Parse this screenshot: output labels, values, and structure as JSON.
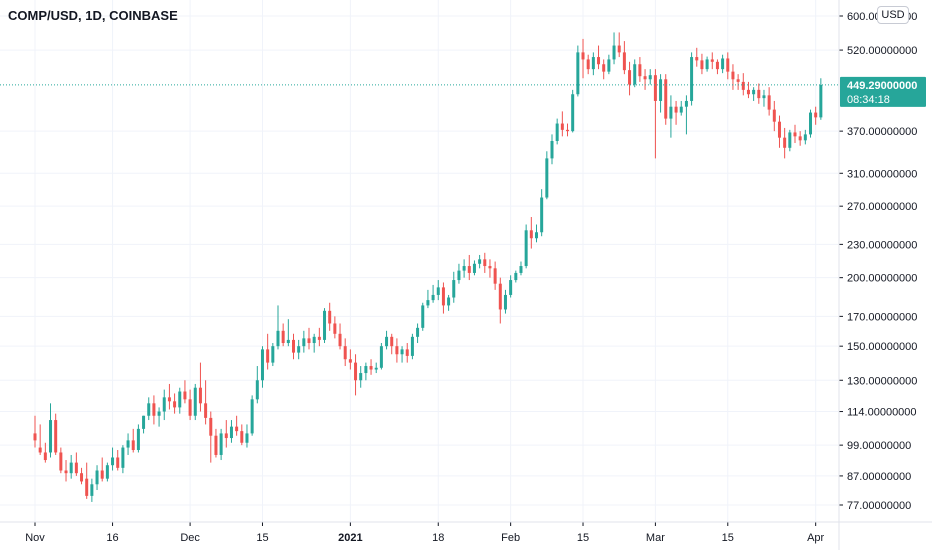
{
  "header": {
    "title": "COMP/USD, 1D, COINBASE",
    "currency_label": "USD"
  },
  "price_tag": {
    "price": "449.29000000",
    "countdown": "08:34:18",
    "color": "#26a69a"
  },
  "colors": {
    "up": "#26a69a",
    "down": "#ef5350",
    "grid": "#f0f3fa",
    "text": "#131722"
  },
  "chart_data": {
    "type": "candlestick",
    "y_scale": "log",
    "ylim": [
      72,
      620
    ],
    "x_tick_labels": [
      {
        "label": "Nov",
        "day": 0
      },
      {
        "label": "16",
        "day": 15
      },
      {
        "label": "Dec",
        "day": 30
      },
      {
        "label": "15",
        "day": 44
      },
      {
        "label": "2021",
        "day": 61,
        "bold": true
      },
      {
        "label": "18",
        "day": 78
      },
      {
        "label": "Feb",
        "day": 92
      },
      {
        "label": "15",
        "day": 106
      },
      {
        "label": "Mar",
        "day": 120
      },
      {
        "label": "15",
        "day": 134
      },
      {
        "label": "Apr",
        "day": 151
      }
    ],
    "y_tick_labels": [
      {
        "label": "600.00000000",
        "value": 600
      },
      {
        "label": "520.00000000",
        "value": 520
      },
      {
        "label": "370.00000000",
        "value": 370
      },
      {
        "label": "310.00000000",
        "value": 310
      },
      {
        "label": "270.00000000",
        "value": 270
      },
      {
        "label": "230.00000000",
        "value": 230
      },
      {
        "label": "200.00000000",
        "value": 200
      },
      {
        "label": "170.00000000",
        "value": 170
      },
      {
        "label": "150.00000000",
        "value": 150
      },
      {
        "label": "130.00000000",
        "value": 130
      },
      {
        "label": "114.00000000",
        "value": 114
      },
      {
        "label": "99.00000000",
        "value": 99
      },
      {
        "label": "87.00000000",
        "value": 87
      },
      {
        "label": "77.00000000",
        "value": 77
      }
    ],
    "last_price": 449.29,
    "grid": true,
    "candles_ohlc": [
      [
        104,
        112,
        101,
        98
      ],
      [
        98,
        108,
        96,
        95
      ],
      [
        96,
        100,
        93,
        92
      ],
      [
        96,
        118,
        110,
        94
      ],
      [
        110,
        113,
        96,
        95
      ],
      [
        96,
        98,
        89,
        88
      ],
      [
        89,
        93,
        88,
        85
      ],
      [
        88,
        95,
        92,
        86
      ],
      [
        92,
        96,
        88,
        87
      ],
      [
        88,
        90,
        85,
        84
      ],
      [
        86,
        92,
        80,
        79
      ],
      [
        80,
        86,
        84,
        78
      ],
      [
        84,
        91,
        89,
        82
      ],
      [
        89,
        94,
        86,
        85
      ],
      [
        86,
        92,
        91,
        85
      ],
      [
        91,
        98,
        94,
        89
      ],
      [
        94,
        97,
        90,
        89
      ],
      [
        90,
        99,
        98,
        88
      ],
      [
        98,
        104,
        101,
        95
      ],
      [
        101,
        106,
        97,
        96
      ],
      [
        97,
        108,
        106,
        96
      ],
      [
        106,
        112,
        112,
        104
      ],
      [
        112,
        121,
        118,
        110
      ],
      [
        118,
        122,
        112,
        108
      ],
      [
        112,
        116,
        114,
        107
      ],
      [
        114,
        125,
        121,
        110
      ],
      [
        121,
        128,
        119,
        115
      ],
      [
        119,
        123,
        116,
        113
      ],
      [
        116,
        126,
        124,
        113
      ],
      [
        124,
        130,
        120,
        118
      ],
      [
        120,
        125,
        112,
        110
      ],
      [
        112,
        128,
        126,
        110
      ],
      [
        126,
        140,
        118,
        114
      ],
      [
        118,
        130,
        111,
        108
      ],
      [
        111,
        114,
        103,
        92
      ],
      [
        103,
        106,
        95,
        94
      ],
      [
        95,
        106,
        104,
        93
      ],
      [
        104,
        110,
        102,
        98
      ],
      [
        102,
        110,
        107,
        100
      ],
      [
        107,
        112,
        105,
        103
      ],
      [
        105,
        108,
        100,
        99
      ],
      [
        100,
        108,
        104,
        98
      ],
      [
        104,
        122,
        120,
        103
      ],
      [
        120,
        138,
        130,
        118
      ],
      [
        130,
        150,
        148,
        126
      ],
      [
        148,
        158,
        140,
        136
      ],
      [
        140,
        152,
        150,
        138
      ],
      [
        150,
        178,
        160,
        148
      ],
      [
        160,
        165,
        152,
        150
      ],
      [
        152,
        168,
        154,
        150
      ],
      [
        154,
        158,
        146,
        142
      ],
      [
        146,
        154,
        150,
        142
      ],
      [
        150,
        160,
        155,
        146
      ],
      [
        155,
        162,
        152,
        148
      ],
      [
        152,
        158,
        156,
        146
      ],
      [
        156,
        162,
        154,
        150
      ],
      [
        154,
        176,
        174,
        152
      ],
      [
        174,
        180,
        165,
        160
      ],
      [
        165,
        170,
        158,
        155
      ],
      [
        158,
        165,
        150,
        148
      ],
      [
        150,
        155,
        142,
        138
      ],
      [
        142,
        148,
        140,
        136
      ],
      [
        140,
        145,
        130,
        122
      ],
      [
        130,
        138,
        134,
        126
      ],
      [
        134,
        140,
        138,
        130
      ],
      [
        138,
        142,
        136,
        133
      ],
      [
        136,
        140,
        137,
        134
      ],
      [
        137,
        152,
        150,
        136
      ],
      [
        150,
        160,
        156,
        148
      ],
      [
        156,
        158,
        150,
        145
      ],
      [
        150,
        155,
        145,
        140
      ],
      [
        145,
        150,
        148,
        140
      ],
      [
        148,
        152,
        144,
        140
      ],
      [
        144,
        158,
        156,
        142
      ],
      [
        156,
        165,
        162,
        152
      ],
      [
        162,
        180,
        178,
        160
      ],
      [
        178,
        190,
        182,
        176
      ],
      [
        182,
        194,
        186,
        180
      ],
      [
        186,
        198,
        192,
        182
      ],
      [
        192,
        196,
        178,
        172
      ],
      [
        178,
        186,
        184,
        174
      ],
      [
        184,
        205,
        198,
        180
      ],
      [
        198,
        212,
        206,
        195
      ],
      [
        206,
        216,
        210,
        200
      ],
      [
        210,
        220,
        204,
        198
      ],
      [
        204,
        215,
        212,
        202
      ],
      [
        212,
        220,
        216,
        208
      ],
      [
        216,
        222,
        210,
        204
      ],
      [
        210,
        216,
        208,
        200
      ],
      [
        208,
        214,
        195,
        190
      ],
      [
        195,
        200,
        175,
        165
      ],
      [
        175,
        190,
        186,
        172
      ],
      [
        186,
        202,
        198,
        184
      ],
      [
        198,
        206,
        204,
        196
      ],
      [
        204,
        214,
        210,
        202
      ],
      [
        210,
        250,
        244,
        208
      ],
      [
        244,
        258,
        236,
        226
      ],
      [
        236,
        250,
        242,
        232
      ],
      [
        242,
        290,
        280,
        238
      ],
      [
        280,
        340,
        330,
        278
      ],
      [
        330,
        365,
        355,
        322
      ],
      [
        355,
        390,
        382,
        350
      ],
      [
        382,
        402,
        372,
        362
      ],
      [
        372,
        382,
        370,
        362
      ],
      [
        370,
        440,
        432,
        368
      ],
      [
        432,
        530,
        515,
        428
      ],
      [
        515,
        545,
        500,
        462
      ],
      [
        500,
        510,
        480,
        470
      ],
      [
        480,
        515,
        505,
        468
      ],
      [
        505,
        530,
        490,
        480
      ],
      [
        490,
        500,
        475,
        460
      ],
      [
        475,
        510,
        500,
        470
      ],
      [
        500,
        560,
        530,
        490
      ],
      [
        530,
        560,
        515,
        505
      ],
      [
        515,
        540,
        478,
        470
      ],
      [
        478,
        495,
        450,
        430
      ],
      [
        450,
        500,
        490,
        445
      ],
      [
        490,
        505,
        466,
        455
      ],
      [
        466,
        480,
        460,
        440
      ],
      [
        460,
        480,
        468,
        450
      ],
      [
        468,
        480,
        420,
        330
      ],
      [
        420,
        470,
        460,
        400
      ],
      [
        460,
        470,
        390,
        380
      ],
      [
        390,
        430,
        410,
        360
      ],
      [
        410,
        420,
        400,
        380
      ],
      [
        400,
        420,
        410,
        395
      ],
      [
        410,
        430,
        420,
        365
      ],
      [
        420,
        515,
        505,
        412
      ],
      [
        505,
        525,
        498,
        485
      ],
      [
        498,
        512,
        480,
        470
      ],
      [
        480,
        506,
        500,
        475
      ],
      [
        500,
        515,
        495,
        480
      ],
      [
        495,
        500,
        480,
        470
      ],
      [
        480,
        510,
        502,
        472
      ],
      [
        502,
        515,
        475,
        460
      ],
      [
        475,
        490,
        460,
        440
      ],
      [
        460,
        470,
        455,
        440
      ],
      [
        455,
        472,
        440,
        430
      ],
      [
        440,
        455,
        432,
        425
      ],
      [
        432,
        445,
        440,
        420
      ],
      [
        440,
        452,
        425,
        415
      ],
      [
        425,
        440,
        430,
        410
      ],
      [
        430,
        445,
        405,
        395
      ],
      [
        405,
        420,
        385,
        370
      ],
      [
        385,
        395,
        360,
        345
      ],
      [
        360,
        375,
        345,
        330
      ],
      [
        345,
        372,
        368,
        340
      ],
      [
        368,
        380,
        362,
        352
      ],
      [
        362,
        370,
        356,
        348
      ],
      [
        356,
        372,
        365,
        350
      ],
      [
        365,
        405,
        400,
        360
      ],
      [
        400,
        410,
        392,
        380
      ],
      [
        392,
        462,
        449.29,
        388
      ]
    ]
  }
}
